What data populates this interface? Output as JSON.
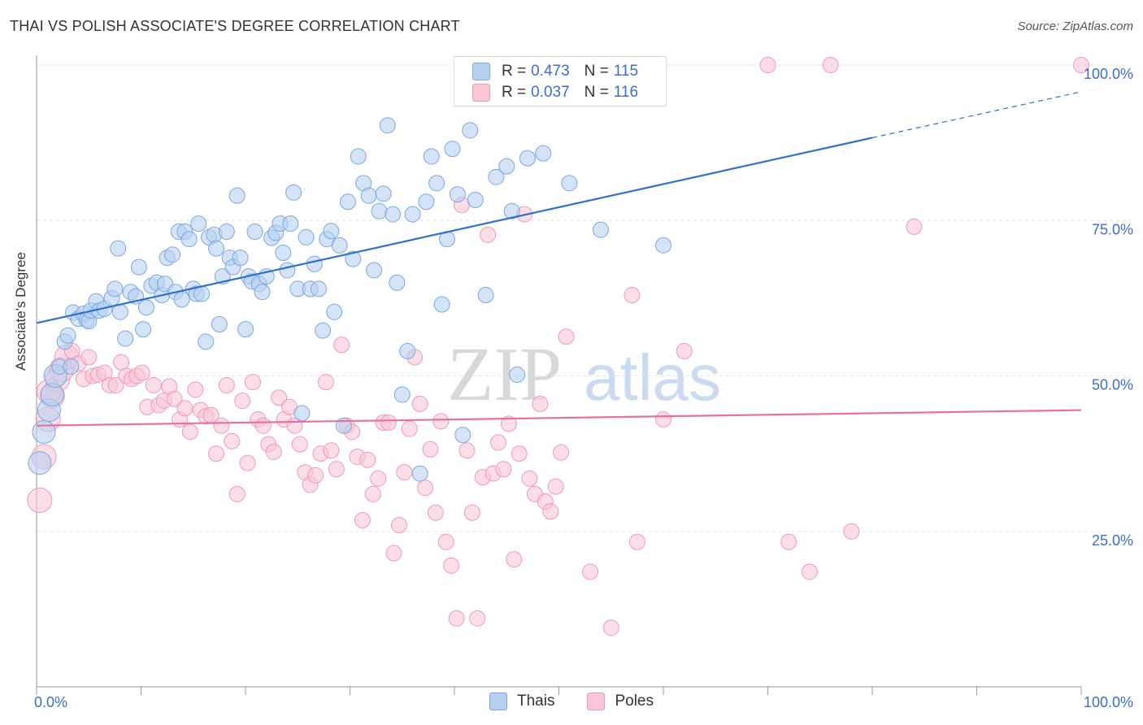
{
  "header": {
    "title": "THAI VS POLISH ASSOCIATE'S DEGREE CORRELATION CHART",
    "source": "Source: ZipAtlas.com"
  },
  "watermark": {
    "zip": "ZIP",
    "atlas": "atlas"
  },
  "legend": {
    "thais": {
      "r_label": "R =",
      "r_value": "0.473",
      "n_label": "N =",
      "n_value": "115",
      "name": "Thais",
      "color": "#7aa7e6"
    },
    "poles": {
      "r_label": "R =",
      "r_value": "0.037",
      "n_label": "N =",
      "n_value": "116",
      "name": "Poles",
      "color": "#f39ab8"
    }
  },
  "colors": {
    "blue_fill": "#b7d0f0",
    "blue_stroke": "#7aa7e6",
    "blue_line": "#2f6fd0",
    "pink_fill": "#f9c6d6",
    "pink_stroke": "#ef9ab6",
    "pink_line": "#e8709a",
    "tick_label": "#3a6ed0"
  },
  "chart_data": {
    "type": "scatter",
    "title": "THAI VS POLISH ASSOCIATE'S DEGREE CORRELATION CHART",
    "xlabel": "",
    "ylabel": "Associate's Degree",
    "xlim": [
      0,
      100
    ],
    "ylim": [
      0,
      100
    ],
    "x_tick_labels": [
      "0.0%",
      "100.0%"
    ],
    "y_tick_labels": [
      "25.0%",
      "50.0%",
      "75.0%",
      "100.0%"
    ],
    "y_ticks": [
      25,
      50,
      75,
      100
    ],
    "grid": true,
    "legend_position": "top-center",
    "series": [
      {
        "name": "Thais",
        "trend": {
          "x0": 0,
          "y0": 58.5,
          "x1": 80,
          "y1": 88.3,
          "dashed_to_x": 100,
          "dashed_to_y": 95.7
        },
        "points": [
          [
            0.3,
            36
          ],
          [
            0.7,
            41
          ],
          [
            1.2,
            44.5
          ],
          [
            1.5,
            47
          ],
          [
            1.8,
            50
          ],
          [
            2.2,
            51.5
          ],
          [
            2.7,
            55.5
          ],
          [
            3.0,
            56.5
          ],
          [
            3.3,
            51.5
          ],
          [
            3.5,
            60.2
          ],
          [
            4.0,
            59.2
          ],
          [
            4.5,
            60
          ],
          [
            4.8,
            59
          ],
          [
            5.0,
            58.8
          ],
          [
            5.2,
            60.5
          ],
          [
            5.7,
            62
          ],
          [
            6.0,
            60.5
          ],
          [
            6.5,
            60.8
          ],
          [
            7.2,
            62.5
          ],
          [
            7.5,
            64
          ],
          [
            7.8,
            70.5
          ],
          [
            8.0,
            60.3
          ],
          [
            8.5,
            56
          ],
          [
            9.0,
            63.5
          ],
          [
            9.5,
            62.8
          ],
          [
            9.8,
            67.5
          ],
          [
            10.2,
            57.5
          ],
          [
            10.5,
            61
          ],
          [
            11,
            64.5
          ],
          [
            11.5,
            65
          ],
          [
            12,
            63
          ],
          [
            12.3,
            64.8
          ],
          [
            12.5,
            69
          ],
          [
            13,
            69.5
          ],
          [
            13.3,
            63.5
          ],
          [
            13.6,
            73.2
          ],
          [
            13.9,
            62.3
          ],
          [
            14.2,
            73.2
          ],
          [
            14.6,
            72
          ],
          [
            15,
            64
          ],
          [
            15.3,
            63.2
          ],
          [
            15.5,
            74.5
          ],
          [
            15.8,
            63.2
          ],
          [
            16.2,
            55.5
          ],
          [
            16.5,
            72.3
          ],
          [
            17,
            72.7
          ],
          [
            17.2,
            70.5
          ],
          [
            17.5,
            58.3
          ],
          [
            17.8,
            66
          ],
          [
            18.2,
            73.2
          ],
          [
            18.5,
            69
          ],
          [
            18.8,
            67.5
          ],
          [
            19.2,
            79
          ],
          [
            19.5,
            69
          ],
          [
            20,
            57.5
          ],
          [
            20.3,
            66
          ],
          [
            20.6,
            65.2
          ],
          [
            20.9,
            73.2
          ],
          [
            21.3,
            64.8
          ],
          [
            21.6,
            63.5
          ],
          [
            22,
            66
          ],
          [
            22.5,
            72.2
          ],
          [
            22.9,
            73
          ],
          [
            23.3,
            74.5
          ],
          [
            23.6,
            69.8
          ],
          [
            24,
            67
          ],
          [
            24.3,
            74.5
          ],
          [
            24.6,
            79.5
          ],
          [
            25,
            64
          ],
          [
            25.4,
            44
          ],
          [
            25.8,
            72.3
          ],
          [
            26.2,
            64
          ],
          [
            26.6,
            68
          ],
          [
            27,
            64
          ],
          [
            27.4,
            57.3
          ],
          [
            27.8,
            72
          ],
          [
            28.2,
            73.3
          ],
          [
            28.5,
            60.3
          ],
          [
            29,
            71
          ],
          [
            29.4,
            42
          ],
          [
            29.8,
            78
          ],
          [
            30.3,
            68.8
          ],
          [
            30.8,
            85.3
          ],
          [
            31.3,
            81
          ],
          [
            31.8,
            79
          ],
          [
            32.3,
            67
          ],
          [
            32.8,
            76.5
          ],
          [
            33.2,
            79.3
          ],
          [
            33.6,
            90.3
          ],
          [
            34.1,
            76
          ],
          [
            34.5,
            65
          ],
          [
            35,
            47
          ],
          [
            35.5,
            54
          ],
          [
            36,
            76
          ],
          [
            36.7,
            34.3
          ],
          [
            37.3,
            78
          ],
          [
            37.8,
            85.3
          ],
          [
            38.3,
            81
          ],
          [
            38.8,
            61.5
          ],
          [
            39.3,
            72
          ],
          [
            39.8,
            86.5
          ],
          [
            40.3,
            79.2
          ],
          [
            40.8,
            40.5
          ],
          [
            41.5,
            89.5
          ],
          [
            42,
            78.3
          ],
          [
            43,
            63
          ],
          [
            44,
            82
          ],
          [
            45,
            83.7
          ],
          [
            45.5,
            76.5
          ],
          [
            46,
            50.2
          ],
          [
            47,
            85
          ],
          [
            48.5,
            85.8
          ],
          [
            51,
            81
          ],
          [
            54,
            73.5
          ],
          [
            60,
            71
          ]
        ]
      },
      {
        "name": "Poles",
        "trend": {
          "x0": 0,
          "y0": 42,
          "x1": 100,
          "y1": 44.5
        },
        "points": [
          [
            0.3,
            30
          ],
          [
            0.7,
            37
          ],
          [
            1.1,
            43
          ],
          [
            1.5,
            46.8
          ],
          [
            2.0,
            49.5
          ],
          [
            2.4,
            51
          ],
          [
            2.9,
            53
          ],
          [
            3.4,
            54
          ],
          [
            4.0,
            52
          ],
          [
            4.5,
            49.5
          ],
          [
            5.0,
            53
          ],
          [
            5.4,
            50
          ],
          [
            5.9,
            50.2
          ],
          [
            6.5,
            50.5
          ],
          [
            7.0,
            48.5
          ],
          [
            7.6,
            48.5
          ],
          [
            8.1,
            52.2
          ],
          [
            8.6,
            50
          ],
          [
            9.1,
            49.5
          ],
          [
            9.6,
            50
          ],
          [
            10.1,
            50.5
          ],
          [
            10.6,
            45
          ],
          [
            11.2,
            48.5
          ],
          [
            11.7,
            45.3
          ],
          [
            12.2,
            46
          ],
          [
            12.7,
            48.3
          ],
          [
            13.2,
            46.3
          ],
          [
            13.7,
            43
          ],
          [
            14.2,
            44.8
          ],
          [
            14.7,
            41
          ],
          [
            15.2,
            47.8
          ],
          [
            15.7,
            44.5
          ],
          [
            16.2,
            43.5
          ],
          [
            16.7,
            43.7
          ],
          [
            17.2,
            37.5
          ],
          [
            17.7,
            42
          ],
          [
            18.2,
            48.5
          ],
          [
            18.7,
            39.5
          ],
          [
            19.2,
            31
          ],
          [
            19.7,
            46
          ],
          [
            20.2,
            36
          ],
          [
            20.7,
            49
          ],
          [
            21.2,
            43
          ],
          [
            21.7,
            42
          ],
          [
            22.2,
            39
          ],
          [
            22.7,
            37.8
          ],
          [
            23.2,
            46.5
          ],
          [
            23.7,
            43
          ],
          [
            24.2,
            45
          ],
          [
            24.7,
            42
          ],
          [
            25.2,
            39
          ],
          [
            25.7,
            34.5
          ],
          [
            26.2,
            32.5
          ],
          [
            26.7,
            34
          ],
          [
            27.2,
            37.5
          ],
          [
            27.7,
            49
          ],
          [
            28.2,
            38
          ],
          [
            28.7,
            35
          ],
          [
            29.2,
            55
          ],
          [
            29.7,
            42
          ],
          [
            30.2,
            41
          ],
          [
            30.7,
            37
          ],
          [
            31.2,
            26.8
          ],
          [
            31.7,
            36.5
          ],
          [
            32.2,
            31
          ],
          [
            32.7,
            33.5
          ],
          [
            33.2,
            42.5
          ],
          [
            33.7,
            42.5
          ],
          [
            34.2,
            21.5
          ],
          [
            34.7,
            26
          ],
          [
            35.2,
            34.5
          ],
          [
            35.7,
            41.5
          ],
          [
            36.2,
            53
          ],
          [
            36.7,
            45.5
          ],
          [
            37.2,
            32
          ],
          [
            37.7,
            38.2
          ],
          [
            38.2,
            28
          ],
          [
            38.7,
            42.7
          ],
          [
            39.2,
            23.3
          ],
          [
            39.7,
            19.5
          ],
          [
            40.2,
            11
          ],
          [
            40.7,
            77.5
          ],
          [
            41.2,
            38
          ],
          [
            41.7,
            28
          ],
          [
            42.2,
            11
          ],
          [
            42.7,
            33.7
          ],
          [
            43.2,
            72.7
          ],
          [
            43.7,
            34.3
          ],
          [
            44.2,
            39.3
          ],
          [
            44.7,
            35
          ],
          [
            45.2,
            42.3
          ],
          [
            45.7,
            20.5
          ],
          [
            46.2,
            37.5
          ],
          [
            46.7,
            76
          ],
          [
            47.2,
            33.5
          ],
          [
            47.7,
            31
          ],
          [
            48.2,
            45.5
          ],
          [
            48.7,
            29.8
          ],
          [
            49.2,
            28.2
          ],
          [
            49.7,
            32.2
          ],
          [
            50.2,
            37.7
          ],
          [
            50.7,
            56.3
          ],
          [
            53,
            18.5
          ],
          [
            55,
            9.5
          ],
          [
            57,
            63
          ],
          [
            57.5,
            23.3
          ],
          [
            60,
            43
          ],
          [
            62,
            54
          ],
          [
            70,
            100
          ],
          [
            72,
            23.3
          ],
          [
            74,
            18.5
          ],
          [
            76,
            100
          ],
          [
            78,
            25
          ],
          [
            84,
            74
          ],
          [
            100,
            100
          ],
          [
            1.2,
            47.5
          ]
        ]
      }
    ]
  }
}
